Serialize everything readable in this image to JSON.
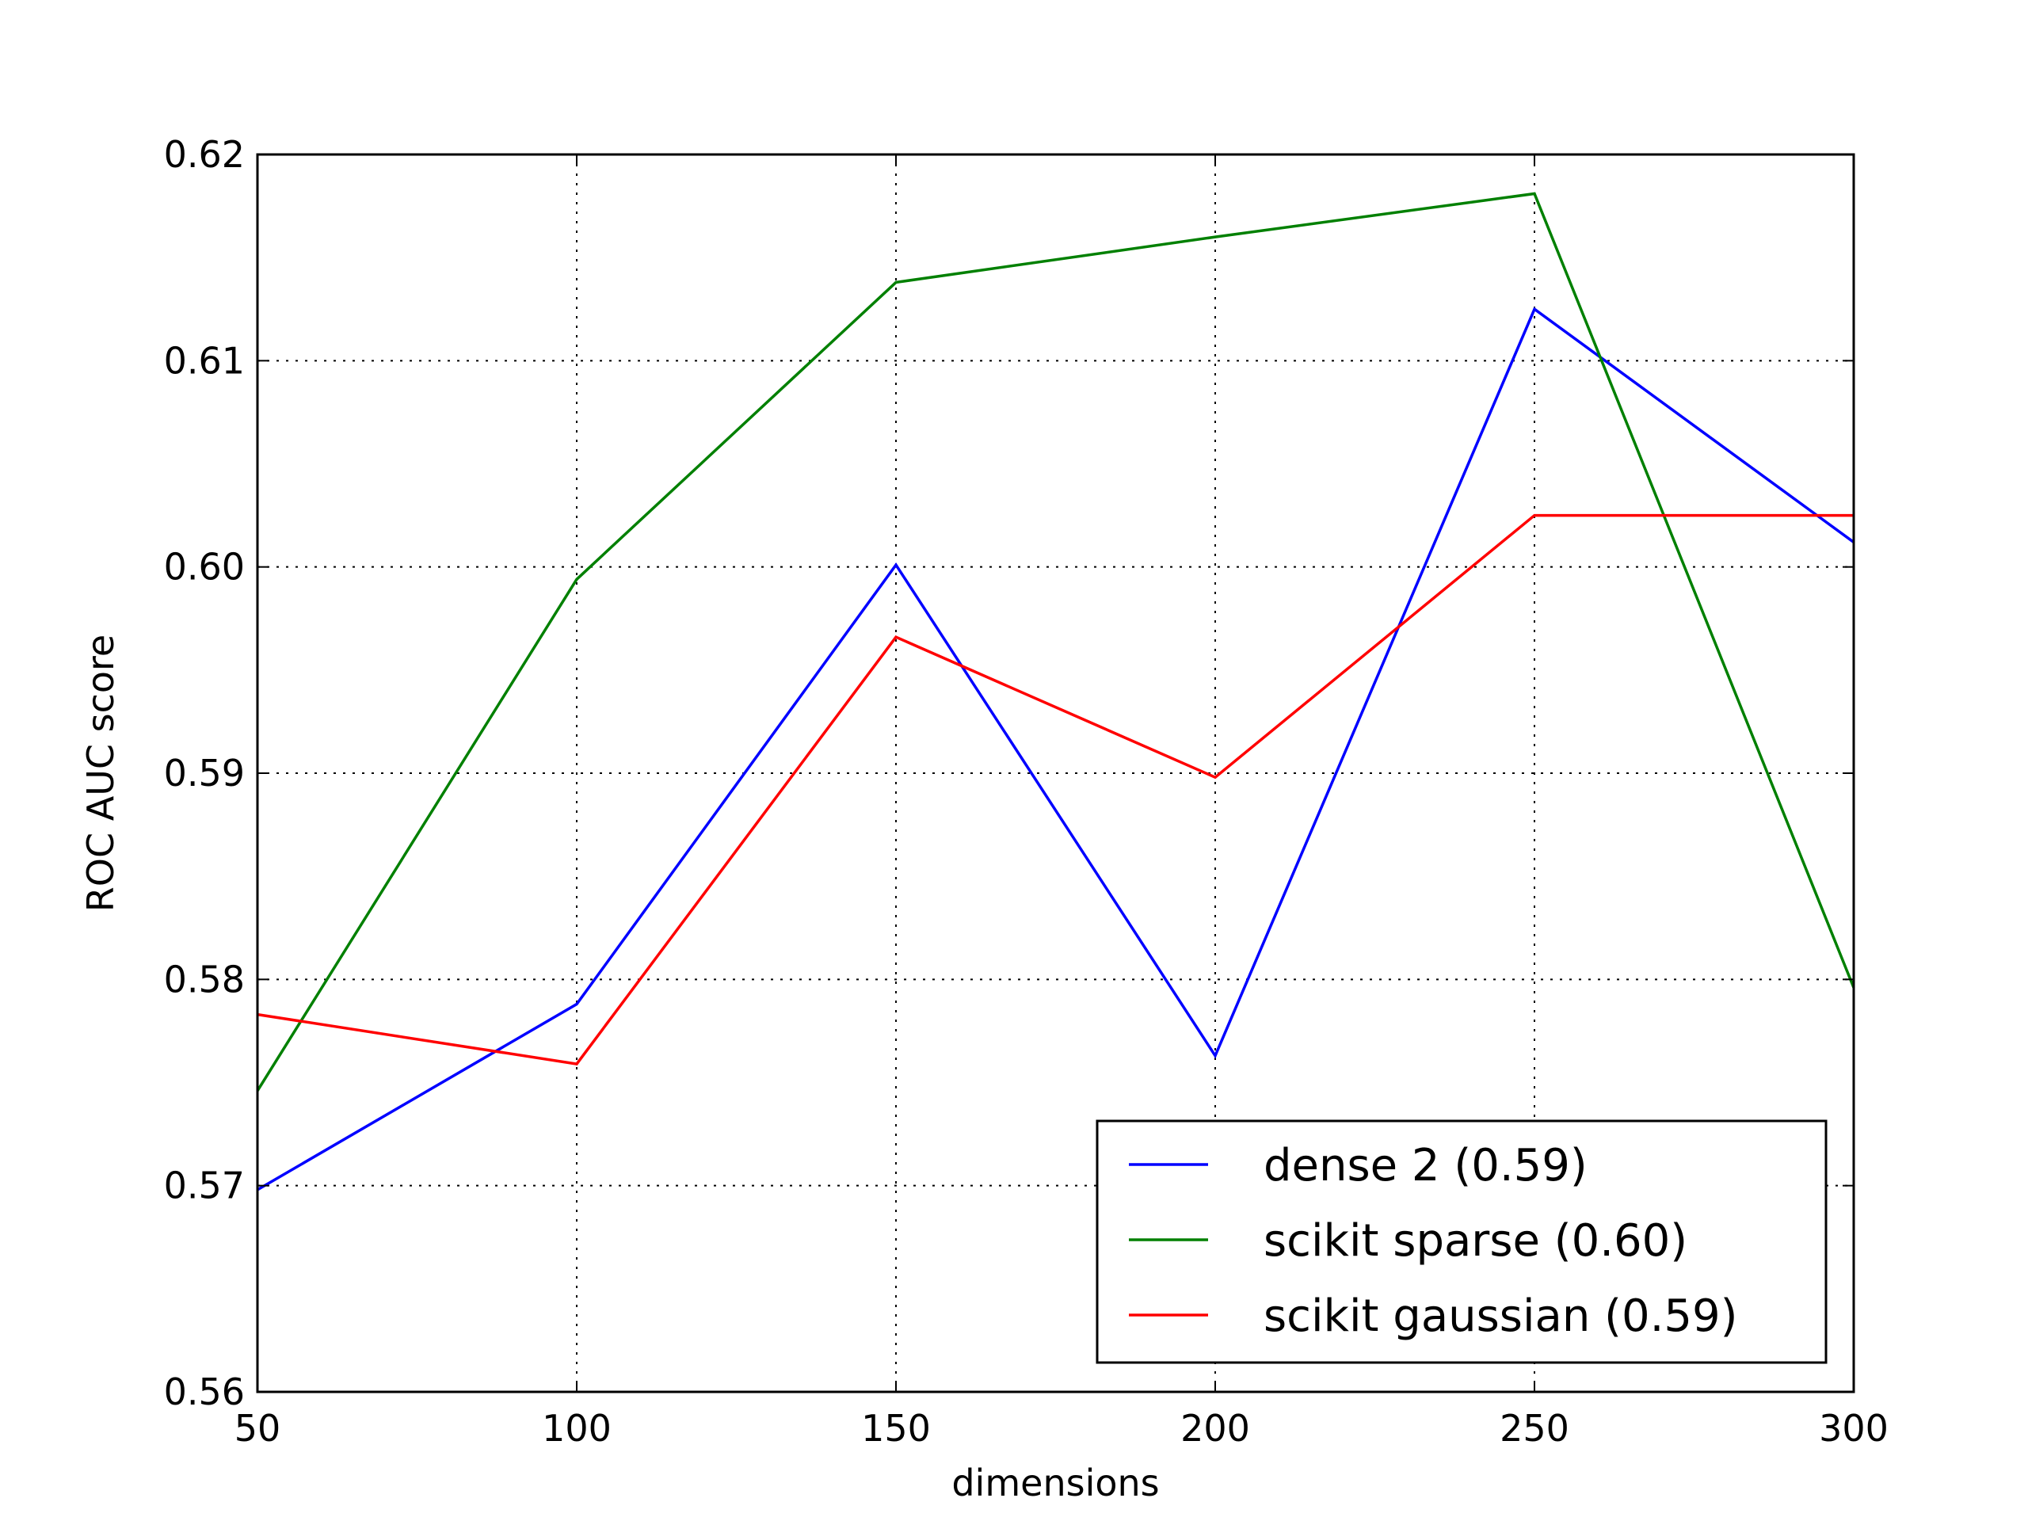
{
  "chart_data": {
    "type": "line",
    "title": "",
    "xlabel": "dimensions",
    "ylabel": "ROC AUC score",
    "xlim": [
      50,
      300
    ],
    "ylim": [
      0.56,
      0.62
    ],
    "x_ticks": [
      50,
      100,
      150,
      200,
      250,
      300
    ],
    "x_tick_labels": [
      "50",
      "100",
      "150",
      "200",
      "250",
      "300"
    ],
    "y_ticks": [
      0.56,
      0.57,
      0.58,
      0.59,
      0.6,
      0.61,
      0.62
    ],
    "y_tick_labels": [
      "0.56",
      "0.57",
      "0.58",
      "0.59",
      "0.60",
      "0.61",
      "0.62"
    ],
    "grid": true,
    "legend_position": "lower-right",
    "x": [
      50,
      100,
      150,
      200,
      250,
      300
    ],
    "series": [
      {
        "name": "dense 2 (0.59)",
        "color": "#0000ff",
        "values": [
          0.5698,
          0.5788,
          0.6001,
          0.5763,
          0.6125,
          0.6012
        ]
      },
      {
        "name": "scikit sparse (0.60)",
        "color": "#008000",
        "values": [
          0.5746,
          0.5994,
          0.6138,
          0.616,
          0.6181,
          0.5796
        ]
      },
      {
        "name": "scikit gaussian (0.59)",
        "color": "#ff0000",
        "values": [
          0.5783,
          0.5759,
          0.5966,
          0.5898,
          0.6025,
          0.6025
        ]
      }
    ]
  }
}
